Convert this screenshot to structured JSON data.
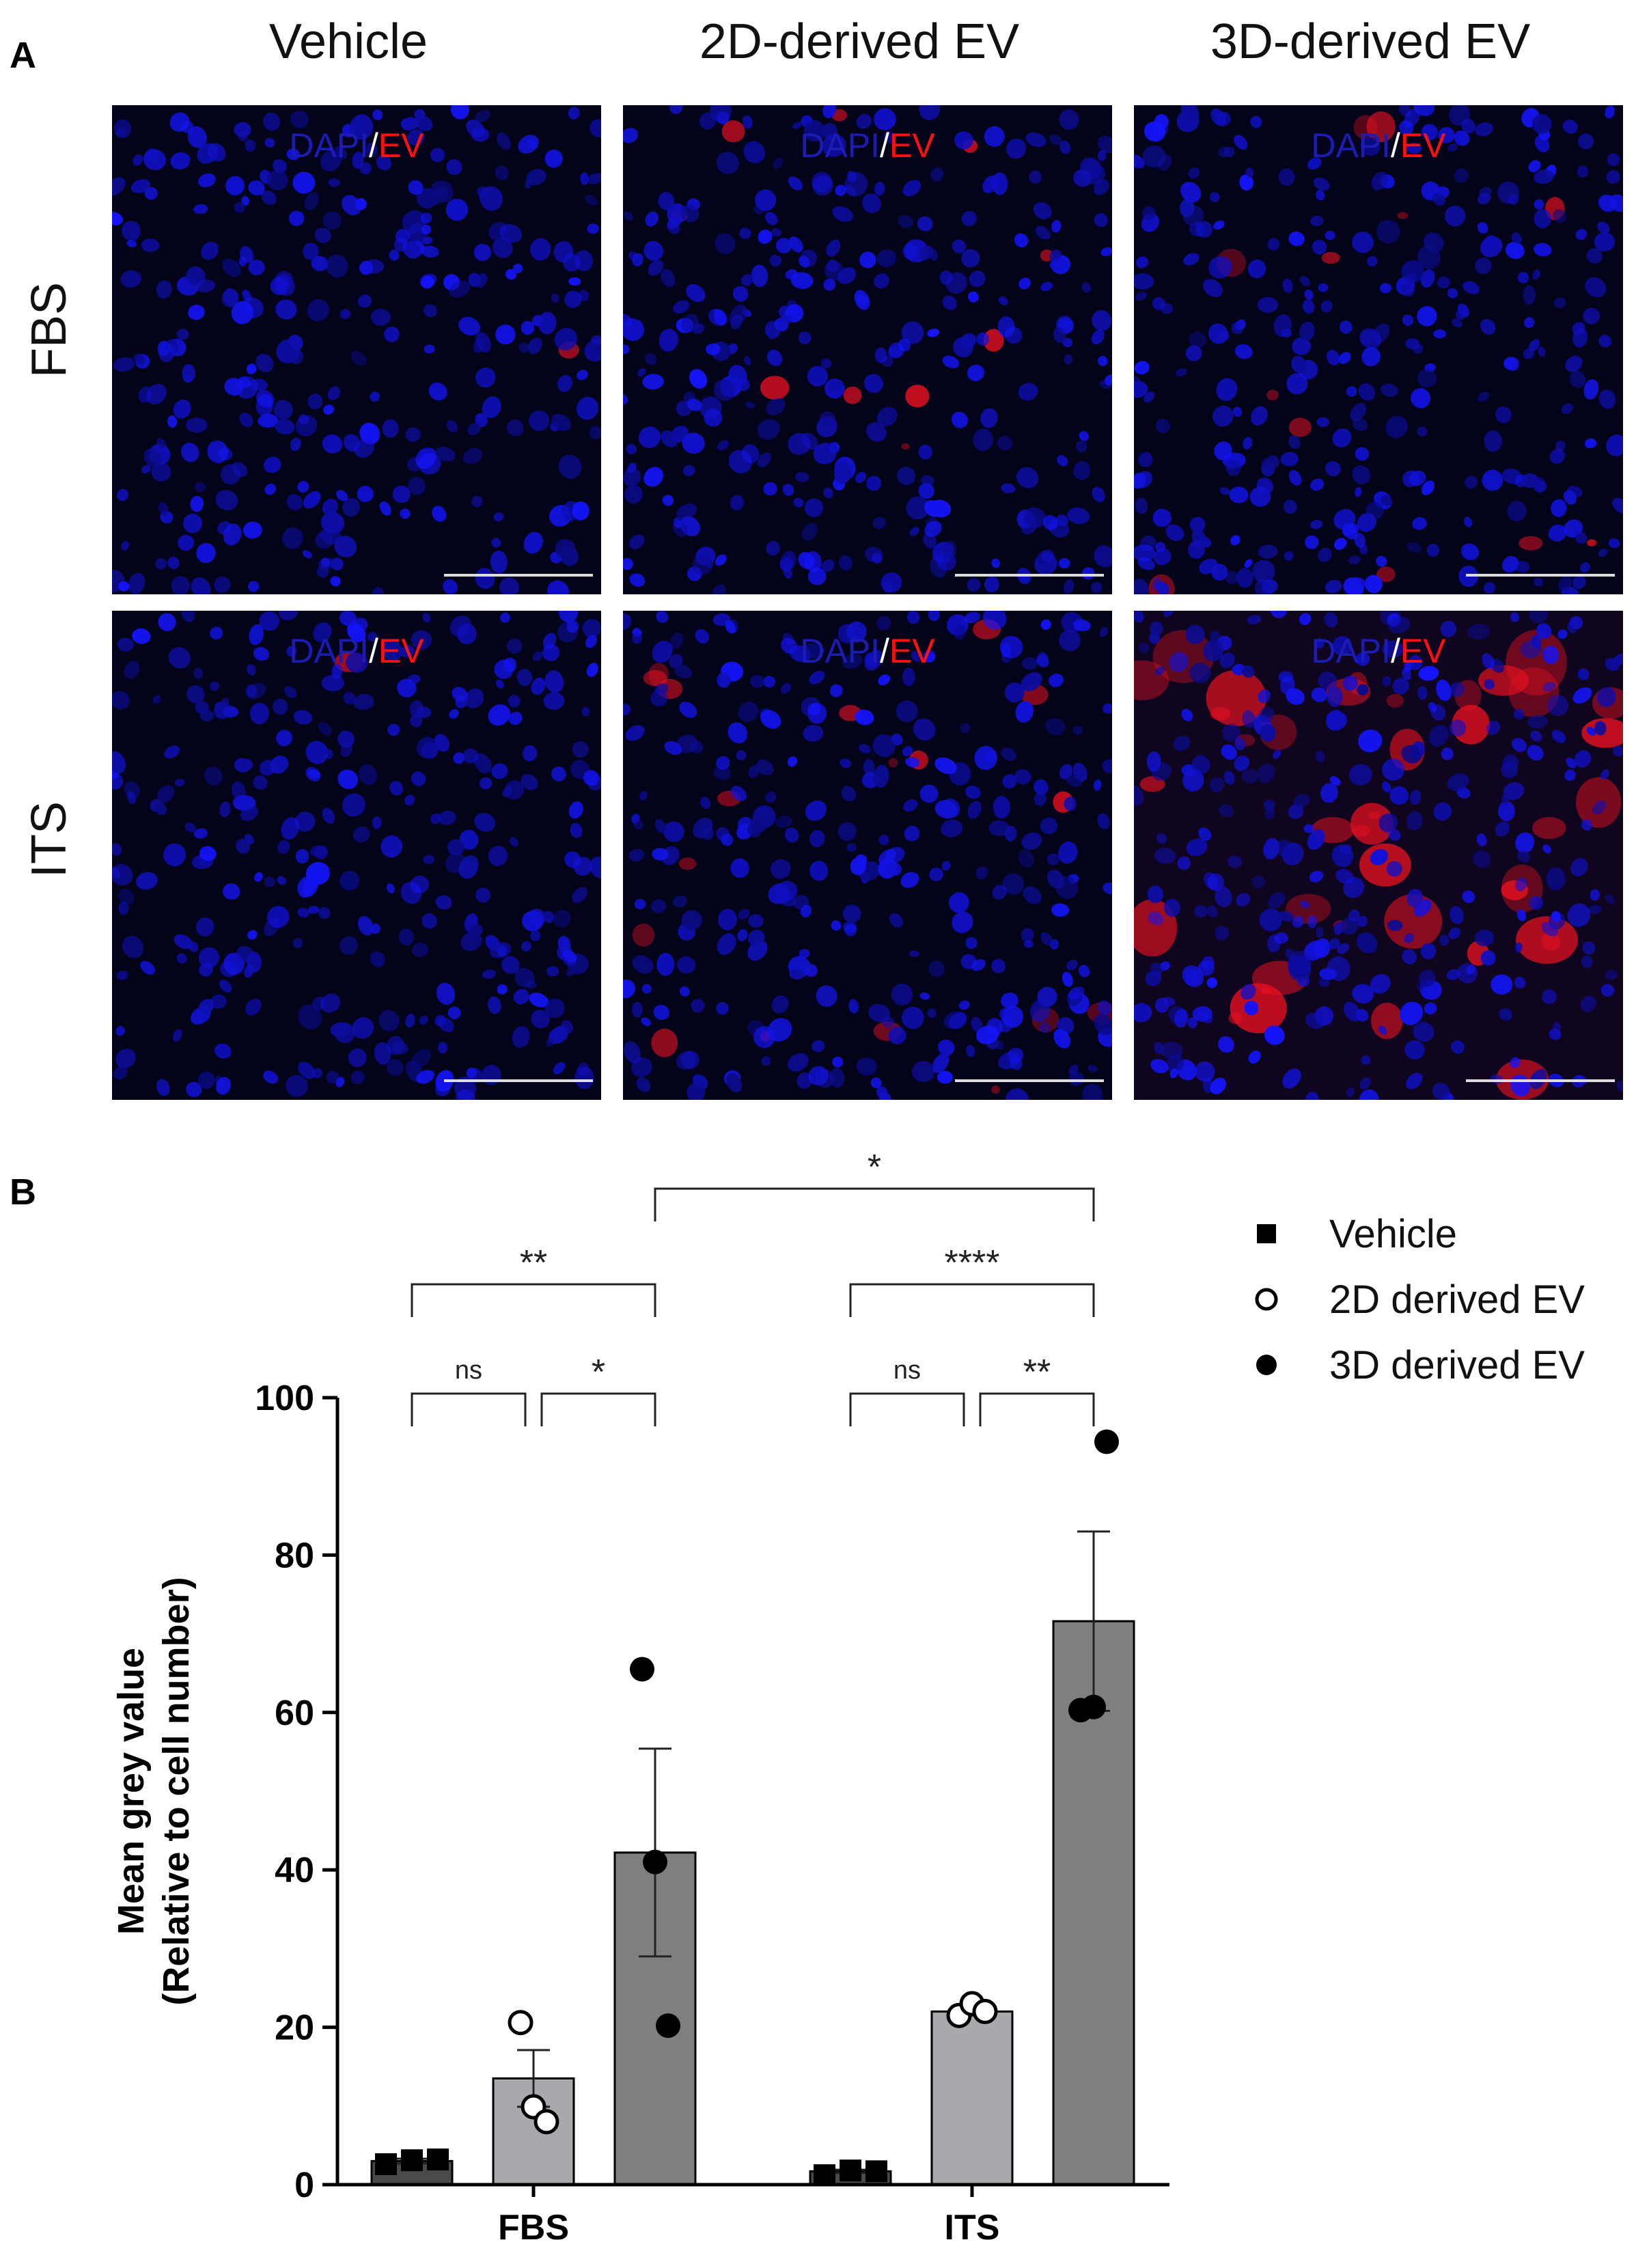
{
  "panel_a": {
    "letter": "A",
    "columns": [
      "Vehicle",
      "2D-derived EV",
      "3D-derived EV"
    ],
    "rows": [
      "FBS",
      "ITS"
    ],
    "overlay": {
      "dapi": "DAPI",
      "slash": "/",
      "ev": "EV"
    },
    "red_signal_level": [
      [
        0.03,
        0.25,
        0.3
      ],
      [
        0.03,
        0.45,
        1.0
      ]
    ]
  },
  "panel_b": {
    "letter": "B"
  },
  "chart_data": {
    "type": "bar",
    "categories": [
      "FBS",
      "ITS"
    ],
    "ylabel_line1": "Mean grey value",
    "ylabel_line2": "(Relative to cell number)",
    "ylim": [
      0,
      100
    ],
    "yticks": [
      0,
      20,
      40,
      60,
      80,
      100
    ],
    "series": [
      {
        "name": "Vehicle",
        "marker": "square",
        "fill": "#4a4a4a",
        "means": [
          3.0,
          1.7
        ],
        "sem": [
          0.3,
          0.2
        ],
        "points": [
          [
            2.6,
            3.1,
            3.2
          ],
          [
            1.2,
            1.8,
            1.7
          ]
        ]
      },
      {
        "name": "2D derived EV",
        "marker": "open-circle",
        "fill": "#a9a9ad",
        "means": [
          13.5,
          22.0
        ],
        "sem": [
          3.6,
          0.5
        ],
        "points": [
          [
            20.6,
            9.9,
            8.0
          ],
          [
            21.5,
            23.0,
            22.0
          ]
        ]
      },
      {
        "name": "3D derived EV",
        "marker": "filled-circle",
        "fill": "#7f7f7f",
        "means": [
          42.2,
          71.6
        ],
        "sem": [
          13.2,
          11.4
        ],
        "points": [
          [
            65.5,
            41.0,
            20.2
          ],
          [
            60.3,
            60.7,
            94.4
          ]
        ]
      }
    ],
    "significance": [
      {
        "group": 0,
        "from": 0,
        "to": 1,
        "label": "ns",
        "level": 1
      },
      {
        "group": 0,
        "from": 1,
        "to": 2,
        "label": "*",
        "level": 1
      },
      {
        "group": 0,
        "from": 0,
        "to": 2,
        "label": "**",
        "level": 2
      },
      {
        "group": 1,
        "from": 0,
        "to": 1,
        "label": "ns",
        "level": 1
      },
      {
        "group": 1,
        "from": 1,
        "to": 2,
        "label": "**",
        "level": 1
      },
      {
        "group": 1,
        "from": 0,
        "to": 2,
        "label": "****",
        "level": 2
      },
      {
        "cross": true,
        "from_group": 0,
        "from": 2,
        "to_group": 1,
        "to": 2,
        "label": "*",
        "level": 3
      }
    ]
  }
}
